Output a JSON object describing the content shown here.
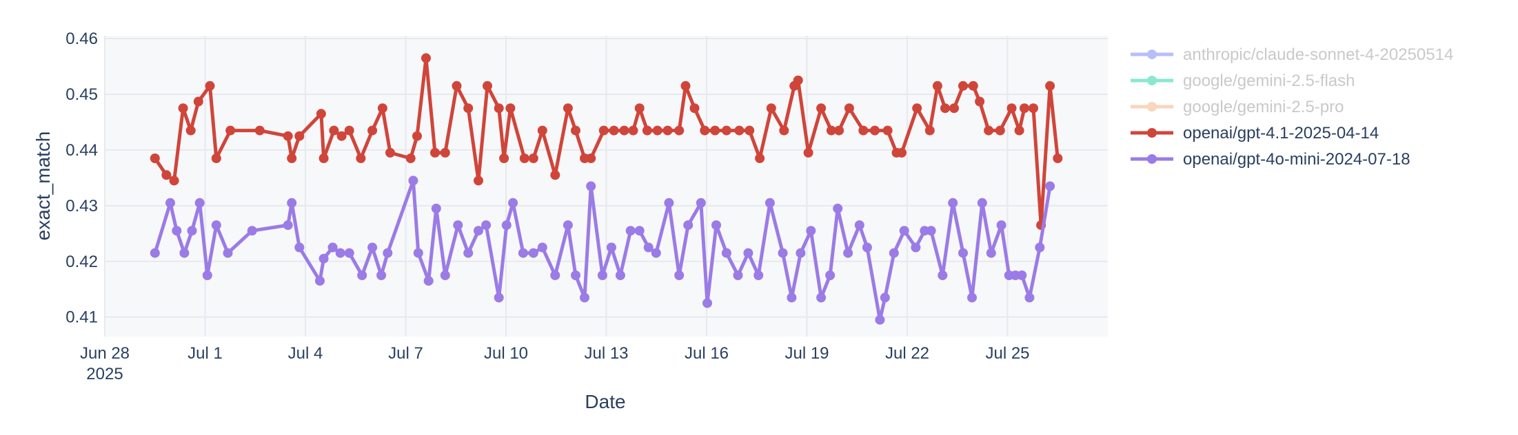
{
  "chart_data": {
    "type": "line",
    "xlabel": "Date",
    "ylabel": "exact_match",
    "ylim": [
      0.4065,
      0.4605
    ],
    "xlim": [
      "2025-06-28",
      "2025-07-28"
    ],
    "grid": true,
    "legend_position": "right",
    "x_ticks": [
      "2025-06-28",
      "2025-07-01",
      "2025-07-04",
      "2025-07-07",
      "2025-07-10",
      "2025-07-13",
      "2025-07-16",
      "2025-07-19",
      "2025-07-22",
      "2025-07-25"
    ],
    "x_tick_labels": [
      "Jun 28",
      "Jul 1",
      "Jul 4",
      "Jul 7",
      "Jul 10",
      "Jul 13",
      "Jul 16",
      "Jul 19",
      "Jul 22",
      "Jul 25"
    ],
    "x_tick_year": "2025",
    "y_ticks": [
      0.41,
      0.42,
      0.43,
      0.44,
      0.45,
      0.46
    ],
    "y_tick_labels": [
      "0.41",
      "0.42",
      "0.43",
      "0.44",
      "0.45",
      "0.46"
    ],
    "series": [
      {
        "name": "anthropic/claude-sonnet-4-20250514",
        "color": "#636efa",
        "visible": false,
        "points": []
      },
      {
        "name": "google/gemini-2.5-flash",
        "color": "#00cc96",
        "visible": false,
        "points": []
      },
      {
        "name": "google/gemini-2.5-pro",
        "color": "#f5a66d",
        "visible": false,
        "points": []
      },
      {
        "name": "openai/gpt-4.1-2025-04-14",
        "color": "#d0453a",
        "visible": true,
        "points": [
          [
            "2025-06-29T12:00",
            0.4385
          ],
          [
            "2025-06-29T21:00",
            0.4355
          ],
          [
            "2025-06-30T03:00",
            0.4345
          ],
          [
            "2025-06-30T10:00",
            0.4475
          ],
          [
            "2025-06-30T16:00",
            0.4435
          ],
          [
            "2025-06-30T22:00",
            0.4487
          ],
          [
            "2025-07-01T07:00",
            0.4515
          ],
          [
            "2025-07-01T12:00",
            0.4385
          ],
          [
            "2025-07-01T23:00",
            0.4435
          ],
          [
            "2025-07-02T22:00",
            0.4435
          ],
          [
            "2025-07-03T20:00",
            0.4425
          ],
          [
            "2025-07-03T23:00",
            0.4385
          ],
          [
            "2025-07-04T05:00",
            0.4425
          ],
          [
            "2025-07-04T22:00",
            0.4465
          ],
          [
            "2025-07-04T23:59",
            0.4385
          ],
          [
            "2025-07-05T08:00",
            0.4435
          ],
          [
            "2025-07-05T14:00",
            0.4425
          ],
          [
            "2025-07-05T20:00",
            0.4435
          ],
          [
            "2025-07-06T05:00",
            0.4385
          ],
          [
            "2025-07-06T14:00",
            0.4435
          ],
          [
            "2025-07-06T22:00",
            0.4475
          ],
          [
            "2025-07-07T04:00",
            0.4395
          ],
          [
            "2025-07-07T20:00",
            0.4385
          ],
          [
            "2025-07-08T01:00",
            0.4425
          ],
          [
            "2025-07-08T08:00",
            0.4565
          ],
          [
            "2025-07-08T15:00",
            0.4395
          ],
          [
            "2025-07-08T23:00",
            0.4395
          ],
          [
            "2025-07-09T08:00",
            0.4515
          ],
          [
            "2025-07-09T17:00",
            0.4475
          ],
          [
            "2025-07-10T01:00",
            0.4345
          ],
          [
            "2025-07-10T08:00",
            0.4515
          ],
          [
            "2025-07-10T17:00",
            0.4475
          ],
          [
            "2025-07-10T21:00",
            0.4385
          ],
          [
            "2025-07-11T02:00",
            0.4475
          ],
          [
            "2025-07-11T13:00",
            0.4385
          ],
          [
            "2025-07-11T20:00",
            0.4385
          ],
          [
            "2025-07-12T03:00",
            0.4435
          ],
          [
            "2025-07-12T13:00",
            0.4355
          ],
          [
            "2025-07-12T23:00",
            0.4475
          ],
          [
            "2025-07-13T05:00",
            0.4435
          ],
          [
            "2025-07-13T12:00",
            0.4385
          ],
          [
            "2025-07-13T17:00",
            0.4385
          ],
          [
            "2025-07-14T03:00",
            0.4435
          ],
          [
            "2025-07-14T11:00",
            0.4435
          ],
          [
            "2025-07-14T19:00",
            0.4435
          ],
          [
            "2025-07-15T02:00",
            0.4435
          ],
          [
            "2025-07-15T07:00",
            0.4475
          ],
          [
            "2025-07-15T13:00",
            0.4435
          ],
          [
            "2025-07-15T21:00",
            0.4435
          ],
          [
            "2025-07-16T05:00",
            0.4435
          ],
          [
            "2025-07-16T14:00",
            0.4435
          ],
          [
            "2025-07-16T19:00",
            0.4515
          ],
          [
            "2025-07-17T02:00",
            0.4475
          ],
          [
            "2025-07-17T10:00",
            0.4435
          ],
          [
            "2025-07-17T18:00",
            0.4435
          ],
          [
            "2025-07-18T03:00",
            0.4435
          ],
          [
            "2025-07-18T13:00",
            0.4435
          ],
          [
            "2025-07-18T21:00",
            0.4435
          ],
          [
            "2025-07-19T05:00",
            0.4385
          ],
          [
            "2025-07-19T14:00",
            0.4475
          ],
          [
            "2025-07-20T00:00",
            0.4435
          ],
          [
            "2025-07-20T08:00",
            0.4515
          ],
          [
            "2025-07-20T11:00",
            0.4525
          ],
          [
            "2025-07-20T19:00",
            0.4395
          ],
          [
            "2025-07-21T05:00",
            0.4475
          ],
          [
            "2025-07-21T13:00",
            0.4435
          ],
          [
            "2025-07-21T19:00",
            0.4435
          ],
          [
            "2025-07-22T03:00",
            0.4475
          ],
          [
            "2025-07-22T14:00",
            0.4435
          ],
          [
            "2025-07-22T23:00",
            0.4435
          ],
          [
            "2025-07-23T09:00",
            0.4435
          ],
          [
            "2025-07-23T16:00",
            0.4395
          ],
          [
            "2025-07-23T20:00",
            0.4395
          ],
          [
            "2025-07-24T08:00",
            0.4475
          ],
          [
            "2025-07-24T18:00",
            0.4435
          ],
          [
            "2025-07-25T00:00",
            0.4515
          ],
          [
            "2025-07-25T06:00",
            0.4475
          ],
          [
            "2025-07-25T13:00",
            0.4475
          ],
          [
            "2025-07-25T20:00",
            0.4515
          ],
          [
            "2025-07-26T04:00",
            0.4515
          ],
          [
            "2025-07-26T09:00",
            0.4487
          ],
          [
            "2025-07-26T16:00",
            0.4435
          ],
          [
            "2025-07-27T01:00",
            0.4435
          ],
          [
            "2025-07-27T10:00",
            0.4475
          ],
          [
            "2025-07-27T16:00",
            0.4435
          ],
          [
            "2025-07-27T20:00",
            0.4475
          ],
          [
            "2025-07-28T03:00",
            0.4475
          ],
          [
            "2025-07-28T09:00",
            0.4265
          ],
          [
            "2025-07-28T16:00",
            0.4515
          ],
          [
            "2025-07-28T22:00",
            0.4385
          ]
        ]
      },
      {
        "name": "openai/gpt-4o-mini-2024-07-18",
        "color": "#9b7be6",
        "visible": true,
        "points": []
      }
    ]
  }
}
